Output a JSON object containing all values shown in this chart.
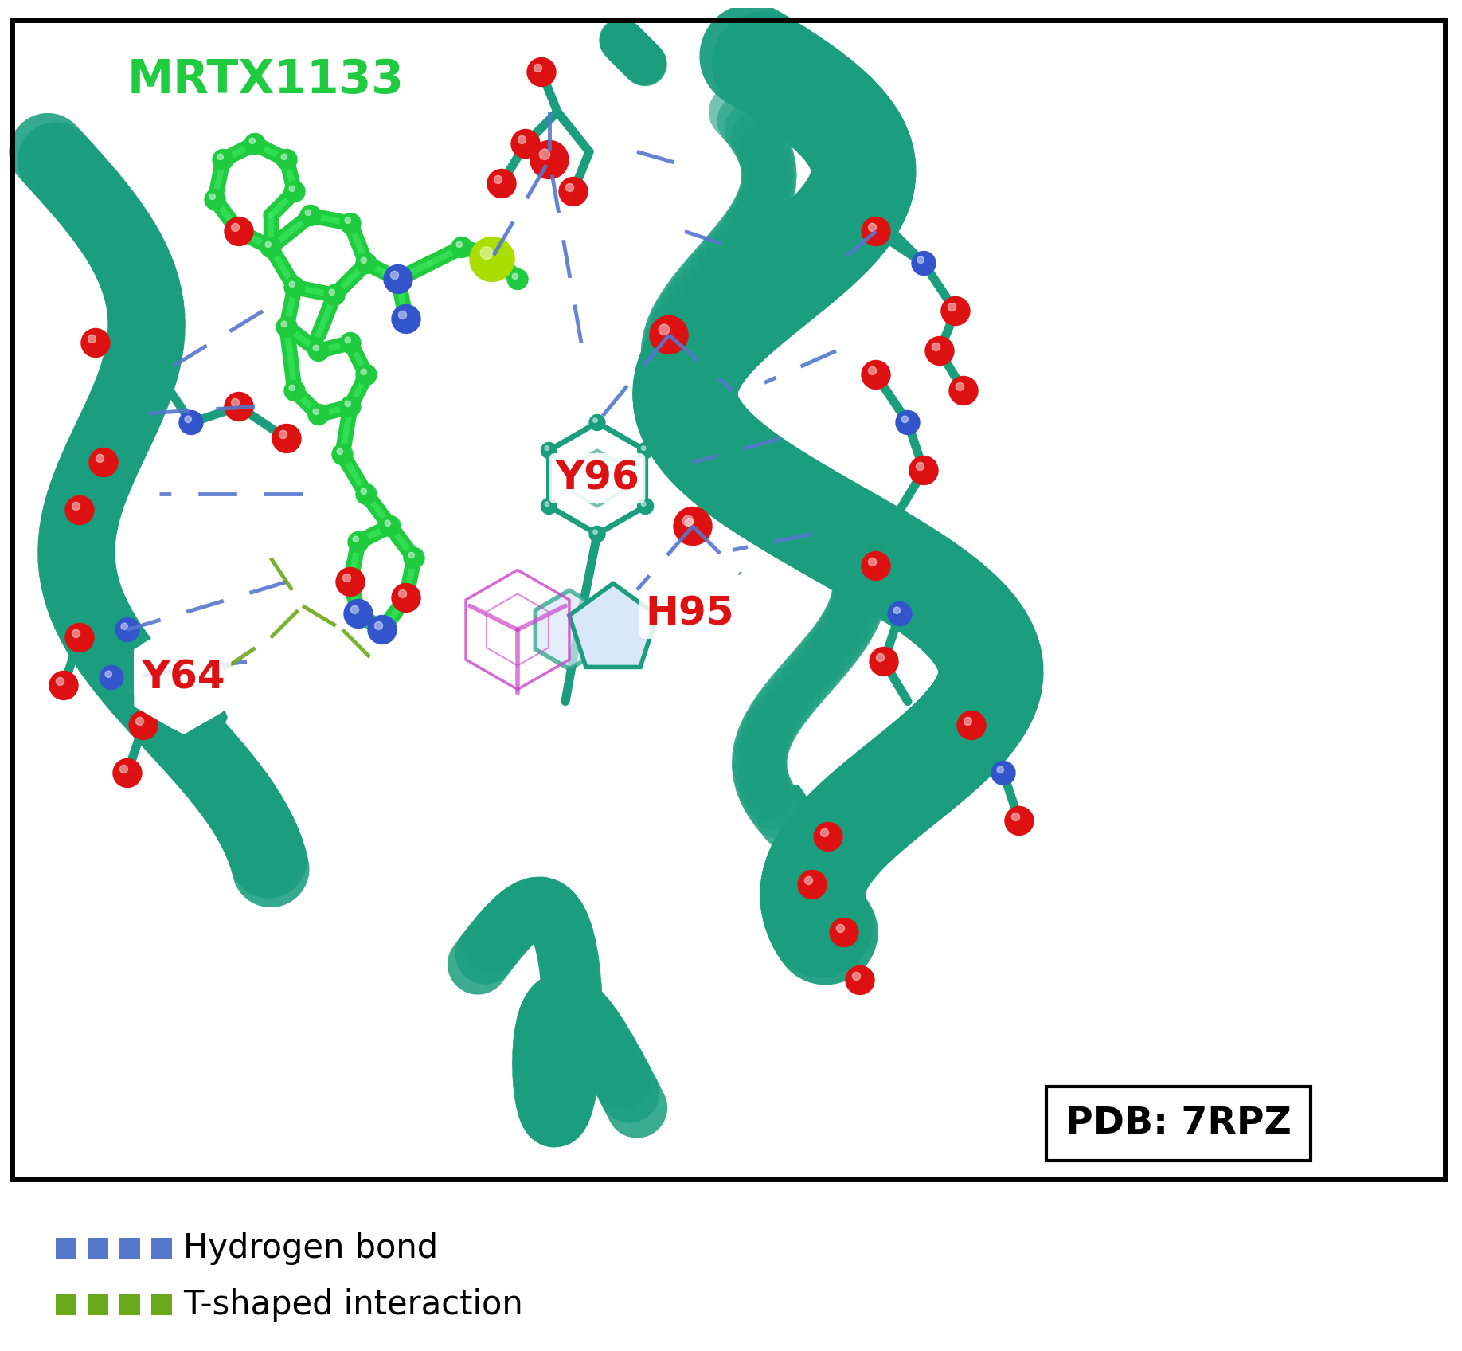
{
  "bg": "#ffffff",
  "protein_color": "#1a9e7e",
  "ligand_color": "#1fcc3f",
  "hbond_color": "#5577cc",
  "tshaped_color": "#6aaa1a",
  "oxygen_color": "#dd1111",
  "nitrogen_color": "#3355cc",
  "fluor_color": "#aadd00",
  "magenta_color": "#cc44cc",
  "water_color": "#dd1111",
  "label_color_red": "#dd1111",
  "label_green": "#1fcc3f",
  "title_text": "MRTX1133",
  "pdb_text": "PDB: 7RPZ",
  "hbond_legend": "Hydrogen bond",
  "tshaped_legend": "T-shaped interaction",
  "legend_fs": 30,
  "label_fs": 36,
  "pdb_fs": 34,
  "title_fs": 42
}
